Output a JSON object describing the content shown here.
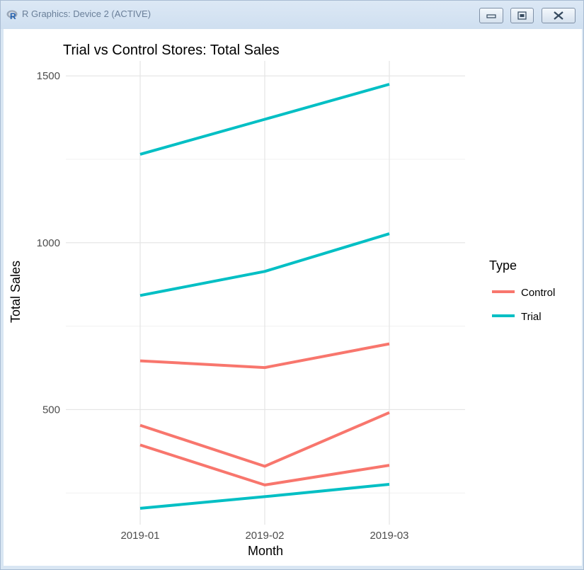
{
  "window": {
    "title": "R Graphics: Device 2 (ACTIVE)",
    "icons": [
      "r-logo-icon",
      "minimize-icon",
      "restore-icon",
      "close-icon"
    ]
  },
  "chart_data": {
    "type": "line",
    "title": "Trial vs Control Stores: Total Sales",
    "xlabel": "Month",
    "ylabel": "Total Sales",
    "categories": [
      "2019-01",
      "2019-02",
      "2019-03"
    ],
    "yticks": [
      500,
      1000,
      1500
    ],
    "ylim": [
      155,
      1545
    ],
    "grid": true,
    "legend": {
      "title": "Type",
      "position": "right",
      "entries": [
        {
          "label": "Control",
          "color": "#F8766D"
        },
        {
          "label": "Trial",
          "color": "#00BFC4"
        }
      ]
    },
    "series": [
      {
        "type": "Trial",
        "color": "#00BFC4",
        "values": [
          1265,
          1370,
          1475
        ]
      },
      {
        "type": "Trial",
        "color": "#00BFC4",
        "values": [
          842,
          914,
          1027
        ]
      },
      {
        "type": "Control",
        "color": "#F8766D",
        "values": [
          646,
          626,
          697
        ]
      },
      {
        "type": "Control",
        "color": "#F8766D",
        "values": [
          453,
          330,
          491
        ]
      },
      {
        "type": "Control",
        "color": "#F8766D",
        "values": [
          394,
          274,
          333
        ]
      },
      {
        "type": "Trial",
        "color": "#00BFC4",
        "values": [
          204,
          239,
          276
        ]
      }
    ]
  }
}
